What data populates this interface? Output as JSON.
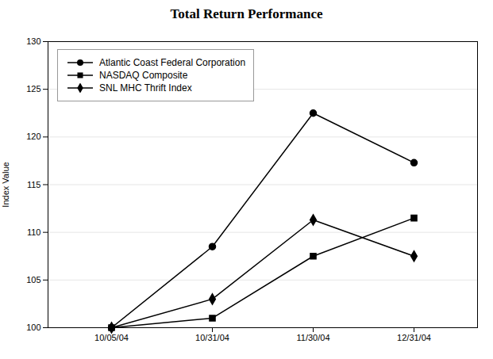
{
  "chart_data": {
    "type": "line",
    "title": "Total Return Performance",
    "ylabel": "Index Value",
    "categories": [
      "10/05/04",
      "10/31/04",
      "11/30/04",
      "12/31/04"
    ],
    "series": [
      {
        "name": "Atlantic Coast Federal Corporation",
        "color": "#000000",
        "marker": "circle",
        "values": [
          100.0,
          108.5,
          122.5,
          117.3
        ]
      },
      {
        "name": "NASDAQ Composite",
        "color": "#000000",
        "marker": "square",
        "values": [
          100.0,
          101.0,
          107.5,
          111.5
        ]
      },
      {
        "name": "SNL MHC Thrift Index",
        "color": "#000000",
        "marker": "diamond",
        "values": [
          100.0,
          103.0,
          111.3,
          107.5
        ]
      }
    ],
    "ylim": [
      100,
      130
    ],
    "yticks": [
      100,
      105,
      110,
      115,
      120,
      125,
      130
    ],
    "grid": true,
    "legend": "upper left"
  }
}
